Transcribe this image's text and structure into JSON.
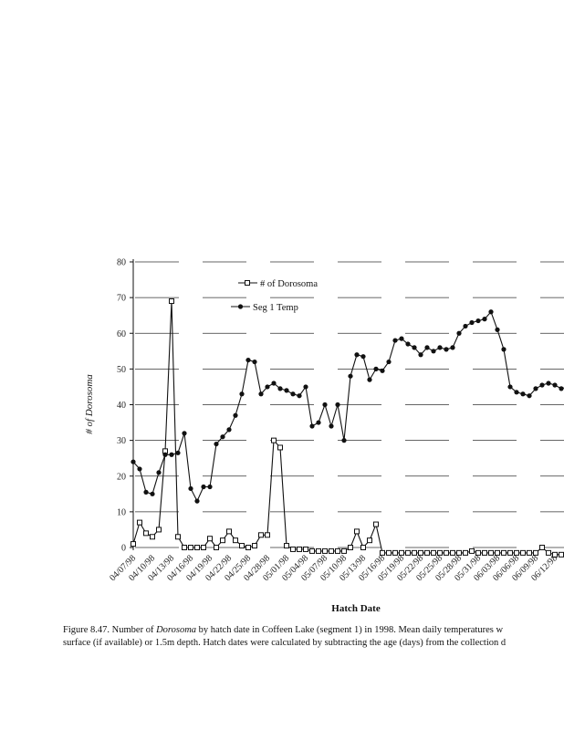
{
  "chart_data": {
    "type": "line",
    "xlabel": "Hatch Date",
    "ylabel": "# of Dorosoma",
    "ylim": [
      0,
      80
    ],
    "yticks": [
      0,
      10,
      20,
      30,
      40,
      50,
      60,
      70,
      80
    ],
    "grid": "dashed horizontal",
    "legend_position": "top-center",
    "xtick_labels": [
      "04/07/98",
      "04/10/98",
      "04/13/98",
      "04/16/98",
      "04/19/98",
      "04/22/98",
      "04/25/98",
      "04/28/98",
      "05/01/98",
      "05/04/98",
      "05/07/98",
      "05/10/98",
      "05/13/98",
      "05/16/98",
      "05/19/98",
      "05/22/98",
      "05/25/98",
      "05/28/98",
      "05/31/98",
      "06/03/98",
      "06/06/98",
      "06/09/98",
      "06/12/98"
    ],
    "series": [
      {
        "name": "# of Dorosoma",
        "marker": "open-square",
        "values": [
          1,
          7,
          4,
          3,
          5,
          27,
          69,
          3,
          0,
          0,
          0,
          0,
          2.5,
          0,
          2,
          4.5,
          2,
          0.5,
          0,
          0.5,
          3.5,
          3.5,
          30,
          28,
          0.5,
          -0.5,
          -0.5,
          -0.5,
          -1,
          -1,
          -1,
          -1,
          -1,
          -1,
          0,
          4.5,
          0,
          2,
          6.5,
          -1.5,
          -1.5,
          -1.5,
          -1.5,
          -1.5,
          -1.5,
          -1.5,
          -1.5,
          -1.5,
          -1.5,
          -1.5,
          -1.5,
          -1.5,
          -1.5,
          -1,
          -1.5,
          -1.5,
          -1.5,
          -1.5,
          -1.5,
          -1.5,
          -1.5,
          -1.5,
          -1.5,
          -1.5,
          0,
          -1.5,
          -2,
          -2,
          -2
        ]
      },
      {
        "name": "Seg 1 Temp",
        "marker": "filled-circle",
        "values": [
          24,
          22,
          15.5,
          15,
          21,
          26,
          26,
          26.5,
          32,
          16.5,
          13,
          17,
          17,
          29,
          31,
          33,
          37,
          43,
          52.5,
          52,
          43,
          45,
          46,
          44.5,
          44,
          43,
          42.5,
          45,
          34,
          35,
          40,
          34,
          40,
          30,
          48,
          54,
          53.5,
          47,
          50,
          49.5,
          52,
          58,
          58.5,
          57,
          56,
          54,
          56,
          55,
          56,
          55.5,
          56,
          60,
          62,
          63,
          63.5,
          64,
          66,
          61,
          55.5,
          45,
          43.5,
          43,
          42.5,
          44.5,
          45.5,
          46,
          45.5,
          44.5,
          45
        ]
      }
    ]
  },
  "caption": {
    "line1_pre": "Figure 8.47.  Number of ",
    "line1_italic": "Dorosoma",
    "line1_post": " by hatch date in Coffeen Lake (segment 1) in 1998.  Mean daily temperatures w",
    "line2": "surface (if available) or 1.5m depth.  Hatch dates were calculated by subtracting the age (days) from the collection d"
  },
  "colors": {
    "ink": "#111111",
    "grid": "#333333"
  }
}
